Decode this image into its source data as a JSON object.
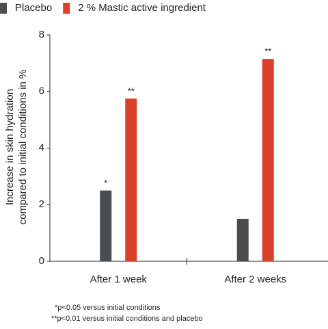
{
  "chart_data": {
    "type": "bar",
    "y_label": [
      "Increase in skin hydration",
      "compared to initial conditions in %"
    ],
    "categories": [
      "After 1 week",
      "After 2 weeks"
    ],
    "series": [
      {
        "name": "Placebo",
        "color": "#4a4d4f",
        "values": [
          2.5,
          1.5
        ],
        "markers": [
          "*",
          null
        ]
      },
      {
        "name": "2 % Mastic active ingredient",
        "color": "#d9402b",
        "values": [
          5.75,
          7.15
        ],
        "markers": [
          "**",
          "**"
        ]
      }
    ],
    "ylim": [
      0,
      8
    ],
    "yticks": [
      0,
      2,
      4,
      6,
      8
    ],
    "grid": false,
    "footnotes": [
      "*p<0.05 versus initial conditions",
      "**p<0.01 versus initial conditions and placebo"
    ]
  }
}
